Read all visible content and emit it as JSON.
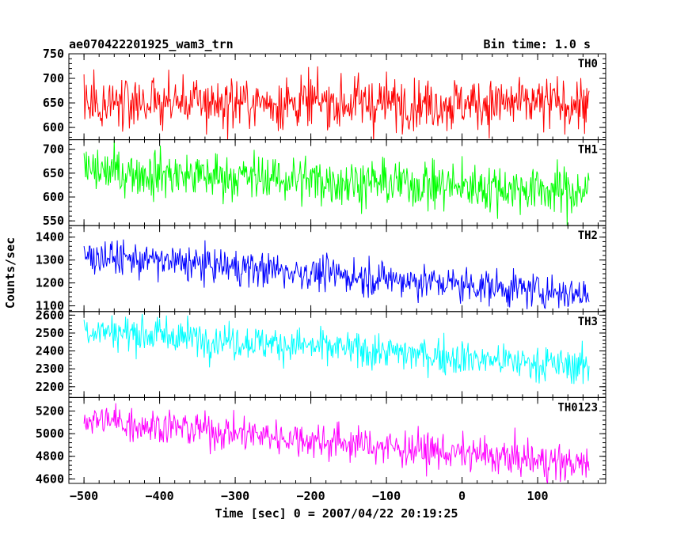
{
  "figure": {
    "title_left": "ae070422201925_wam3_trn",
    "title_right": "Bin time: 1.0 s",
    "ylabel": "Counts/sec",
    "xlabel": "Time [sec] 0 = 2007/04/22 20:19:25"
  },
  "chart_data": {
    "type": "line",
    "title": "ae070422201925_wam3_trn",
    "subtitle": "Bin time: 1.0 s",
    "xlabel": "Time [sec] 0 = 2007/04/22 20:19:25",
    "ylabel": "Counts/sec",
    "xlim": [
      -520,
      190
    ],
    "xticks": [
      -500,
      -400,
      -300,
      -200,
      -100,
      0,
      100
    ],
    "x_step": 1.0,
    "x_range": [
      -500,
      168
    ],
    "grid": false,
    "panels": [
      {
        "name": "TH0",
        "color": "#ff0000",
        "ylim": [
          575,
          750
        ],
        "yticks": [
          600,
          650,
          700,
          750
        ],
        "trend": [
          {
            "x": -500,
            "y": 652
          },
          {
            "x": 168,
            "y": 648
          }
        ],
        "noise_sd": 27
      },
      {
        "name": "TH1",
        "color": "#00ff00",
        "ylim": [
          540,
          720
        ],
        "yticks": [
          550,
          600,
          650,
          700
        ],
        "trend": [
          {
            "x": -500,
            "y": 655
          },
          {
            "x": 168,
            "y": 612
          }
        ],
        "noise_sd": 25
      },
      {
        "name": "TH2",
        "color": "#0000ff",
        "ylim": [
          1075,
          1450
        ],
        "yticks": [
          1100,
          1200,
          1300,
          1400
        ],
        "trend": [
          {
            "x": -500,
            "y": 1320
          },
          {
            "x": 168,
            "y": 1150
          }
        ],
        "noise_sd": 38
      },
      {
        "name": "TH3",
        "color": "#00ffff",
        "ylim": [
          2140,
          2620
        ],
        "yticks": [
          2200,
          2300,
          2400,
          2500,
          2600
        ],
        "trend": [
          {
            "x": -500,
            "y": 2520
          },
          {
            "x": 168,
            "y": 2310
          }
        ],
        "noise_sd": 50
      },
      {
        "name": "TH0123",
        "color": "#ff00ff",
        "ylim": [
          4560,
          5320
        ],
        "yticks": [
          4600,
          4800,
          5000,
          5200
        ],
        "trend": [
          {
            "x": -500,
            "y": 5130
          },
          {
            "x": 168,
            "y": 4720
          }
        ],
        "noise_sd": 80
      }
    ]
  }
}
